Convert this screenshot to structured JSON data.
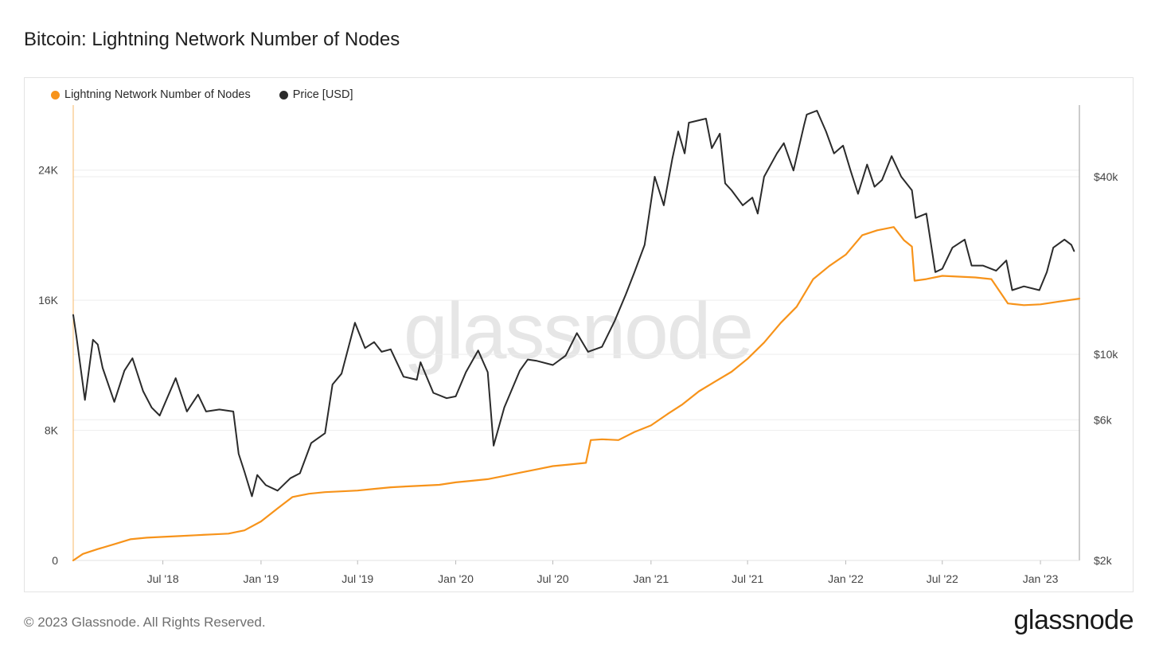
{
  "page": {
    "title": "Bitcoin: Lightning Network Number of Nodes",
    "copyright": "© 2023 Glassnode. All Rights Reserved.",
    "brand": "glassnode",
    "watermark": "glassnode"
  },
  "colors": {
    "nodes": "#f7931a",
    "price": "#2b2b2b",
    "grid": "#ededed"
  },
  "chart_data": {
    "type": "line",
    "title": "Bitcoin: Lightning Network Number of Nodes",
    "legend": [
      "Lightning Network Number of Nodes",
      "Price [USD]"
    ],
    "legend_placement": "top-left",
    "grid": true,
    "x_range": [
      "2018-01-14",
      "2023-03-15"
    ],
    "x_ticks": [
      {
        "date": "2018-07-01",
        "label": "Jul '18"
      },
      {
        "date": "2019-01-01",
        "label": "Jan '19"
      },
      {
        "date": "2019-07-01",
        "label": "Jul '19"
      },
      {
        "date": "2020-01-01",
        "label": "Jan '20"
      },
      {
        "date": "2020-07-01",
        "label": "Jul '20"
      },
      {
        "date": "2021-01-01",
        "label": "Jan '21"
      },
      {
        "date": "2021-07-01",
        "label": "Jul '21"
      },
      {
        "date": "2022-01-01",
        "label": "Jan '22"
      },
      {
        "date": "2022-07-01",
        "label": "Jul '22"
      },
      {
        "date": "2023-01-01",
        "label": "Jan '23"
      }
    ],
    "y_left": {
      "ylim": [
        0,
        28000
      ],
      "ticks": [
        {
          "value": 0,
          "label": "0"
        },
        {
          "value": 8000,
          "label": "8K"
        },
        {
          "value": 16000,
          "label": "16K"
        },
        {
          "value": 24000,
          "label": "24K"
        }
      ]
    },
    "y_right": {
      "scale": "log",
      "ylim": [
        2000,
        70000
      ],
      "ticks": [
        {
          "value": 2000,
          "label": "$2k"
        },
        {
          "value": 6000,
          "label": "$6k"
        },
        {
          "value": 10000,
          "label": "$10k"
        },
        {
          "value": 40000,
          "label": "$40k"
        }
      ]
    },
    "series": [
      {
        "name": "Lightning Network Number of Nodes",
        "axis": "left",
        "points": [
          [
            "2018-01-14",
            0
          ],
          [
            "2018-02-01",
            400
          ],
          [
            "2018-03-01",
            700
          ],
          [
            "2018-04-01",
            1000
          ],
          [
            "2018-05-01",
            1300
          ],
          [
            "2018-06-01",
            1400
          ],
          [
            "2018-07-01",
            1450
          ],
          [
            "2018-08-01",
            1500
          ],
          [
            "2018-09-01",
            1550
          ],
          [
            "2018-10-01",
            1600
          ],
          [
            "2018-11-01",
            1650
          ],
          [
            "2018-12-01",
            1850
          ],
          [
            "2019-01-01",
            2400
          ],
          [
            "2019-02-01",
            3200
          ],
          [
            "2019-03-01",
            3900
          ],
          [
            "2019-04-01",
            4100
          ],
          [
            "2019-05-01",
            4200
          ],
          [
            "2019-06-01",
            4250
          ],
          [
            "2019-07-01",
            4300
          ],
          [
            "2019-08-01",
            4400
          ],
          [
            "2019-09-01",
            4500
          ],
          [
            "2019-10-01",
            4550
          ],
          [
            "2019-11-01",
            4600
          ],
          [
            "2019-12-01",
            4650
          ],
          [
            "2020-01-01",
            4800
          ],
          [
            "2020-02-01",
            4900
          ],
          [
            "2020-03-01",
            5000
          ],
          [
            "2020-04-01",
            5200
          ],
          [
            "2020-05-01",
            5400
          ],
          [
            "2020-06-01",
            5600
          ],
          [
            "2020-07-01",
            5800
          ],
          [
            "2020-08-01",
            5900
          ],
          [
            "2020-09-01",
            6000
          ],
          [
            "2020-09-10",
            7400
          ],
          [
            "2020-10-01",
            7450
          ],
          [
            "2020-11-01",
            7400
          ],
          [
            "2020-12-01",
            7900
          ],
          [
            "2021-01-01",
            8300
          ],
          [
            "2021-02-01",
            9000
          ],
          [
            "2021-03-01",
            9600
          ],
          [
            "2021-04-01",
            10400
          ],
          [
            "2021-05-01",
            11000
          ],
          [
            "2021-06-01",
            11600
          ],
          [
            "2021-07-01",
            12400
          ],
          [
            "2021-08-01",
            13400
          ],
          [
            "2021-09-01",
            14600
          ],
          [
            "2021-10-01",
            15600
          ],
          [
            "2021-11-01",
            17300
          ],
          [
            "2021-12-01",
            18100
          ],
          [
            "2022-01-01",
            18800
          ],
          [
            "2022-02-01",
            20000
          ],
          [
            "2022-03-01",
            20300
          ],
          [
            "2022-04-01",
            20500
          ],
          [
            "2022-04-20",
            19700
          ],
          [
            "2022-05-05",
            19300
          ],
          [
            "2022-05-10",
            17200
          ],
          [
            "2022-06-01",
            17300
          ],
          [
            "2022-07-01",
            17500
          ],
          [
            "2022-08-01",
            17450
          ],
          [
            "2022-09-01",
            17400
          ],
          [
            "2022-10-01",
            17300
          ],
          [
            "2022-11-01",
            15800
          ],
          [
            "2022-12-01",
            15700
          ],
          [
            "2023-01-01",
            15750
          ],
          [
            "2023-02-01",
            15900
          ],
          [
            "2023-03-15",
            16100
          ]
        ]
      },
      {
        "name": "Price [USD]",
        "axis": "right",
        "points": [
          [
            "2018-01-14",
            13600
          ],
          [
            "2018-01-20",
            11500
          ],
          [
            "2018-02-05",
            7000
          ],
          [
            "2018-02-20",
            11200
          ],
          [
            "2018-03-01",
            10800
          ],
          [
            "2018-03-10",
            9000
          ],
          [
            "2018-04-01",
            6900
          ],
          [
            "2018-04-20",
            8800
          ],
          [
            "2018-05-05",
            9700
          ],
          [
            "2018-05-25",
            7500
          ],
          [
            "2018-06-10",
            6600
          ],
          [
            "2018-06-25",
            6200
          ],
          [
            "2018-07-25",
            8300
          ],
          [
            "2018-08-15",
            6400
          ],
          [
            "2018-09-05",
            7300
          ],
          [
            "2018-09-20",
            6400
          ],
          [
            "2018-10-15",
            6500
          ],
          [
            "2018-11-10",
            6400
          ],
          [
            "2018-11-20",
            4600
          ],
          [
            "2018-12-01",
            4000
          ],
          [
            "2018-12-15",
            3300
          ],
          [
            "2018-12-25",
            3900
          ],
          [
            "2019-01-10",
            3600
          ],
          [
            "2019-02-01",
            3450
          ],
          [
            "2019-02-25",
            3800
          ],
          [
            "2019-03-15",
            3950
          ],
          [
            "2019-04-05",
            5000
          ],
          [
            "2019-05-01",
            5400
          ],
          [
            "2019-05-15",
            7900
          ],
          [
            "2019-06-01",
            8600
          ],
          [
            "2019-06-26",
            12800
          ],
          [
            "2019-07-15",
            10500
          ],
          [
            "2019-08-01",
            11000
          ],
          [
            "2019-08-15",
            10200
          ],
          [
            "2019-09-01",
            10400
          ],
          [
            "2019-09-25",
            8400
          ],
          [
            "2019-10-20",
            8200
          ],
          [
            "2019-10-27",
            9400
          ],
          [
            "2019-11-20",
            7400
          ],
          [
            "2019-12-15",
            7100
          ],
          [
            "2020-01-01",
            7200
          ],
          [
            "2020-01-20",
            8700
          ],
          [
            "2020-02-12",
            10300
          ],
          [
            "2020-03-01",
            8700
          ],
          [
            "2020-03-12",
            4900
          ],
          [
            "2020-04-01",
            6600
          ],
          [
            "2020-04-30",
            8800
          ],
          [
            "2020-05-15",
            9600
          ],
          [
            "2020-06-01",
            9500
          ],
          [
            "2020-07-01",
            9200
          ],
          [
            "2020-07-25",
            9900
          ],
          [
            "2020-08-15",
            11800
          ],
          [
            "2020-09-05",
            10200
          ],
          [
            "2020-10-01",
            10600
          ],
          [
            "2020-10-25",
            13000
          ],
          [
            "2020-11-15",
            16000
          ],
          [
            "2020-12-01",
            19000
          ],
          [
            "2020-12-20",
            23500
          ],
          [
            "2021-01-08",
            40000
          ],
          [
            "2021-01-25",
            32000
          ],
          [
            "2021-02-10",
            46000
          ],
          [
            "2021-02-21",
            57000
          ],
          [
            "2021-03-05",
            48000
          ],
          [
            "2021-03-13",
            61000
          ],
          [
            "2021-04-14",
            63000
          ],
          [
            "2021-04-25",
            50000
          ],
          [
            "2021-05-10",
            56000
          ],
          [
            "2021-05-20",
            38000
          ],
          [
            "2021-06-01",
            36000
          ],
          [
            "2021-06-22",
            32000
          ],
          [
            "2021-07-10",
            34000
          ],
          [
            "2021-07-20",
            30000
          ],
          [
            "2021-08-01",
            40000
          ],
          [
            "2021-08-25",
            48000
          ],
          [
            "2021-09-07",
            52000
          ],
          [
            "2021-09-25",
            42000
          ],
          [
            "2021-10-15",
            60000
          ],
          [
            "2021-10-20",
            65000
          ],
          [
            "2021-11-08",
            67000
          ],
          [
            "2021-11-25",
            57000
          ],
          [
            "2021-12-10",
            48000
          ],
          [
            "2021-12-27",
            51000
          ],
          [
            "2022-01-10",
            42000
          ],
          [
            "2022-01-24",
            35000
          ],
          [
            "2022-02-10",
            44000
          ],
          [
            "2022-02-24",
            37000
          ],
          [
            "2022-03-10",
            39000
          ],
          [
            "2022-03-28",
            47000
          ],
          [
            "2022-04-15",
            40000
          ],
          [
            "2022-05-05",
            36000
          ],
          [
            "2022-05-12",
            29000
          ],
          [
            "2022-06-01",
            30000
          ],
          [
            "2022-06-18",
            19000
          ],
          [
            "2022-07-01",
            19500
          ],
          [
            "2022-07-20",
            23000
          ],
          [
            "2022-08-12",
            24500
          ],
          [
            "2022-08-25",
            20000
          ],
          [
            "2022-09-15",
            20000
          ],
          [
            "2022-10-10",
            19200
          ],
          [
            "2022-10-29",
            20800
          ],
          [
            "2022-11-09",
            16500
          ],
          [
            "2022-12-01",
            17000
          ],
          [
            "2022-12-30",
            16500
          ],
          [
            "2023-01-13",
            19000
          ],
          [
            "2023-01-25",
            23000
          ],
          [
            "2023-02-15",
            24500
          ],
          [
            "2023-02-28",
            23500
          ],
          [
            "2023-03-05",
            22400
          ]
        ]
      }
    ]
  }
}
